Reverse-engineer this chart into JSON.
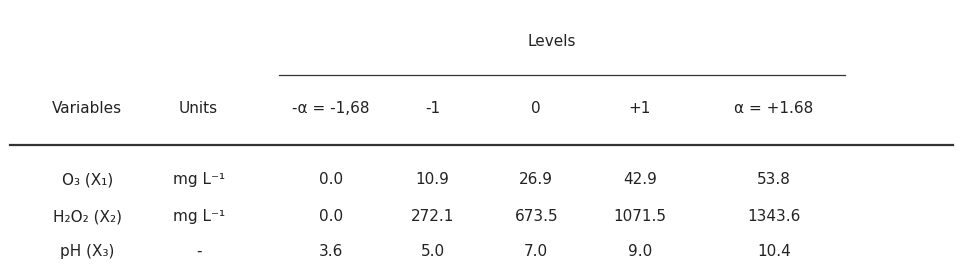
{
  "title_levels": "Levels",
  "col_headers": [
    "-α = -1,68",
    "-1",
    "0",
    "+1",
    "α = +1.68"
  ],
  "row_headers_var": [
    "O₃ (X₁)",
    "H₂O₂ (X₂)",
    "pH (X₃)"
  ],
  "row_headers_units": [
    "mg L⁻¹",
    "mg L⁻¹",
    "-"
  ],
  "data": [
    [
      "0.0",
      "10.9",
      "26.9",
      "42.9",
      "53.8"
    ],
    [
      "0.0",
      "272.1",
      "673.5",
      "1071.5",
      "1343.6"
    ],
    [
      "3.6",
      "5.0",
      "7.0",
      "9.0",
      "10.4"
    ]
  ],
  "col_variables": "Variables",
  "col_units": "Units",
  "bg_color": "#ffffff",
  "text_color": "#222222",
  "line_color": "#333333",
  "font_size": 11
}
